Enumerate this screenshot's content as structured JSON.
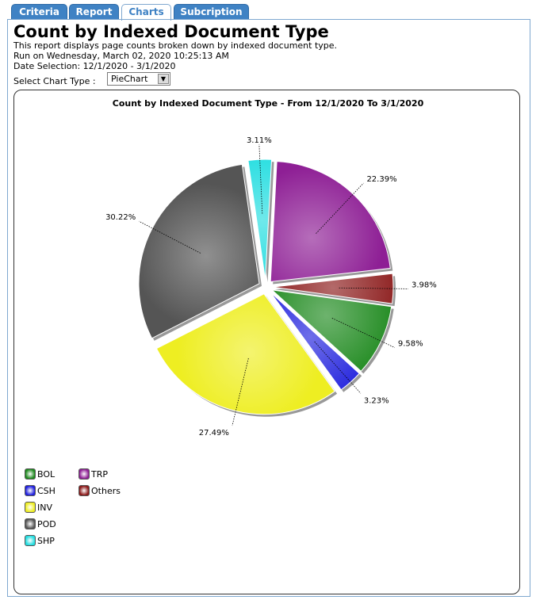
{
  "tabs": [
    {
      "label": "Criteria",
      "active": false
    },
    {
      "label": "Report",
      "active": false
    },
    {
      "label": "Charts",
      "active": true
    },
    {
      "label": "Subcription",
      "active": false
    }
  ],
  "report": {
    "title": "Count by Indexed Document Type",
    "description": "This report displays page counts broken down by indexed document type.",
    "run_on": "Run on Wednesday, March 02, 2020 10:25:13 AM",
    "date_selection": "Date Selection: 12/1/2020 - 3/1/2020"
  },
  "chart_type": {
    "label": "Select Chart Type :",
    "selected": "PieChart"
  },
  "colors": {
    "tab_blue": "#3f82c4",
    "TRP": "#8e1f95",
    "Others": "#8b1a1a",
    "BOL": "#1f8a1f",
    "CSH": "#2020dd",
    "INV": "#eeee22",
    "POD": "#555555",
    "SHP": "#22dde0"
  },
  "chart_data": {
    "type": "pie",
    "title": "Count by Indexed Document Type - From 12/1/2020 To 3/1/2020",
    "slices": [
      {
        "name": "TRP",
        "value": 22.39,
        "label": "22.39%"
      },
      {
        "name": "Others",
        "value": 3.98,
        "label": "3.98%"
      },
      {
        "name": "BOL",
        "value": 9.58,
        "label": "9.58%"
      },
      {
        "name": "CSH",
        "value": 3.23,
        "label": "3.23%"
      },
      {
        "name": "INV",
        "value": 27.49,
        "label": "27.49%"
      },
      {
        "name": "POD",
        "value": 30.22,
        "label": "30.22%"
      },
      {
        "name": "SHP",
        "value": 3.11,
        "label": "3.11%"
      }
    ],
    "legend": [
      [
        "BOL",
        "CSH",
        "INV",
        "POD",
        "SHP"
      ],
      [
        "TRP",
        "Others"
      ]
    ],
    "legend_position": "bottom-left",
    "exploded": true
  }
}
